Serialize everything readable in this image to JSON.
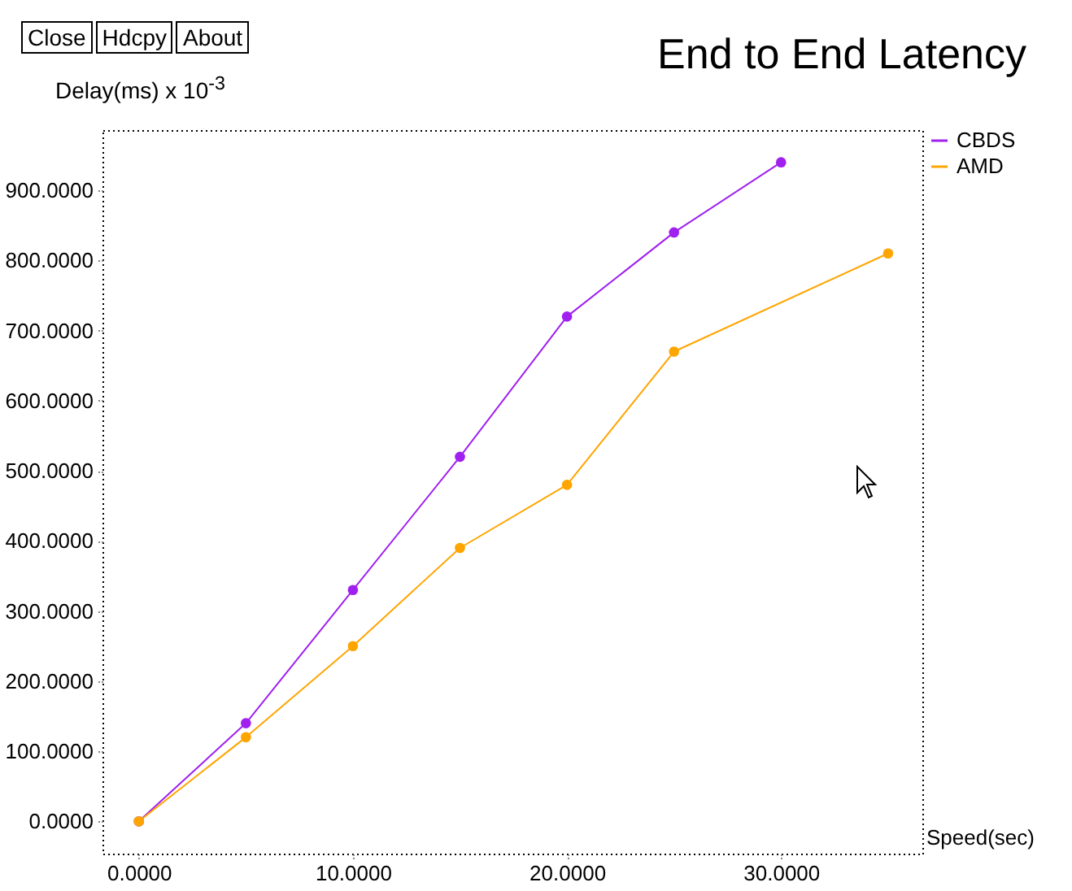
{
  "chart_data": {
    "type": "line",
    "title": "End to End Latency",
    "xlabel": "Speed(sec)",
    "ylabel": "Delay(ms) x 10$^{-3}$",
    "annotations": [
      "Close",
      "Hdcpy",
      "About"
    ],
    "series": [
      {
        "name": "CBDS",
        "color": "#a020f0",
        "x": [
          0,
          5,
          10,
          15,
          20,
          25,
          30
        ],
        "values": [
          0,
          140,
          330,
          520,
          720,
          840,
          940
        ]
      },
      {
        "name": "AMD",
        "color": "#ffa500",
        "x": [
          0,
          5,
          10,
          15,
          20,
          25,
          35
        ],
        "values": [
          0,
          120,
          250,
          390,
          480,
          670,
          810
        ]
      }
    ],
    "xlim": [
      -1.7,
      36.6
    ],
    "ylim": [
      -46,
      986
    ],
    "xticks": [
      {
        "value": 0,
        "label": "0.0000"
      },
      {
        "value": 10,
        "label": "10.0000"
      },
      {
        "value": 20,
        "label": "20.0000"
      },
      {
        "value": 30,
        "label": "30.0000"
      }
    ],
    "yticks": [
      {
        "value": 0,
        "label": "0.0000"
      },
      {
        "value": 100,
        "label": "100.0000"
      },
      {
        "value": 200,
        "label": "200.0000"
      },
      {
        "value": 300,
        "label": "300.0000"
      },
      {
        "value": 400,
        "label": "400.0000"
      },
      {
        "value": 500,
        "label": "500.0000"
      },
      {
        "value": 600,
        "label": "600.0000"
      },
      {
        "value": 700,
        "label": "700.0000"
      },
      {
        "value": 800,
        "label": "800.0000"
      },
      {
        "value": 900,
        "label": "900.0000"
      }
    ],
    "legend": "top right",
    "marker": "circle"
  }
}
